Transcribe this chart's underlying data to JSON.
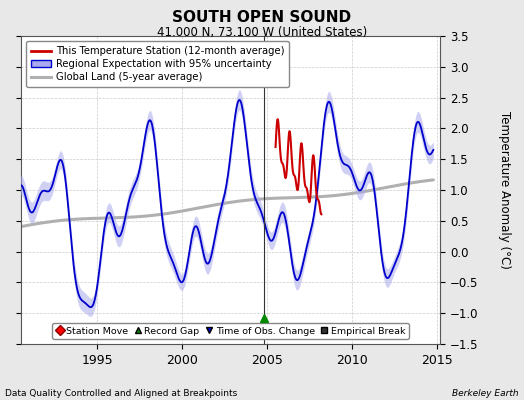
{
  "title": "SOUTH OPEN SOUND",
  "subtitle": "41.000 N, 73.100 W (United States)",
  "ylabel": "Temperature Anomaly (°C)",
  "footer_left": "Data Quality Controlled and Aligned at Breakpoints",
  "footer_right": "Berkeley Earth",
  "xlim": [
    1990.5,
    2015.2
  ],
  "ylim": [
    -1.5,
    3.5
  ],
  "yticks": [
    -1.5,
    -1.0,
    -0.5,
    0.0,
    0.5,
    1.0,
    1.5,
    2.0,
    2.5,
    3.0,
    3.5
  ],
  "xticks": [
    1995,
    2000,
    2005,
    2010,
    2015
  ],
  "bg_color": "#e8e8e8",
  "plot_bg_color": "#ffffff",
  "regional_color": "#0000cc",
  "regional_fill_color": "#aaaaee",
  "station_color": "#cc0000",
  "global_color": "#b0b0b0",
  "vline_x": 2004.83,
  "vline_color": "#333333",
  "marker_record_gap_x": 2004.83,
  "marker_record_gap_y": -1.08,
  "time_of_obs_marker_color": "#0000cc",
  "record_gap_marker_color": "#008800",
  "legend_station": "This Temperature Station (12-month average)",
  "legend_regional": "Regional Expectation with 95% uncertainty",
  "legend_global": "Global Land (5-year average)",
  "legend_station_move": "Station Move",
  "legend_record_gap": "Record Gap",
  "legend_obs_change": "Time of Obs. Change",
  "legend_emp_break": "Empirical Break"
}
